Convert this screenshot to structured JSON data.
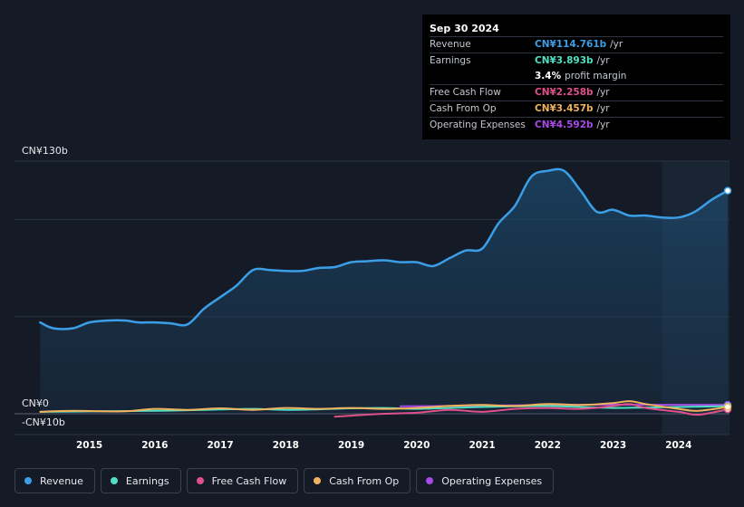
{
  "tooltip": {
    "date": "Sep 30 2024",
    "rows": [
      {
        "label": "Revenue",
        "value": "CN¥114.761b",
        "unit": "/yr",
        "color": "#3b9fe8"
      },
      {
        "label": "Earnings",
        "value": "CN¥3.893b",
        "unit": "/yr",
        "color": "#4fe0c4"
      },
      {
        "label": "",
        "value": "3.4%",
        "unit": "",
        "extra": "profit margin",
        "color": "#ffffff"
      },
      {
        "label": "Free Cash Flow",
        "value": "CN¥2.258b",
        "unit": "/yr",
        "color": "#e0508a"
      },
      {
        "label": "Cash From Op",
        "value": "CN¥3.457b",
        "unit": "/yr",
        "color": "#f0b25a"
      },
      {
        "label": "Operating Expenses",
        "value": "CN¥4.592b",
        "unit": "/yr",
        "color": "#a64be8"
      }
    ]
  },
  "legend": [
    {
      "label": "Revenue",
      "color": "#3b9fe8"
    },
    {
      "label": "Earnings",
      "color": "#4fe0c4"
    },
    {
      "label": "Free Cash Flow",
      "color": "#e0508a"
    },
    {
      "label": "Cash From Op",
      "color": "#f0b25a"
    },
    {
      "label": "Operating Expenses",
      "color": "#a64be8"
    }
  ],
  "chart_data": {
    "type": "line",
    "title": "",
    "xlabel": "",
    "ylabel": "",
    "ylim": [
      -10,
      130
    ],
    "xlim": [
      2014.3,
      2024.75
    ],
    "y_tick_labels": [
      {
        "value": 130,
        "label": "CN¥130b"
      },
      {
        "value": 0,
        "label": "CN¥0"
      },
      {
        "value": -10,
        "label": "-CN¥10b"
      }
    ],
    "x_ticks": [
      2015,
      2016,
      2017,
      2018,
      2019,
      2020,
      2021,
      2022,
      2023,
      2024
    ],
    "x_tick_labels": [
      "2015",
      "2016",
      "2017",
      "2018",
      "2019",
      "2020",
      "2021",
      "2022",
      "2023",
      "2024"
    ],
    "highlight_from": 2023.75,
    "series": [
      {
        "name": "Revenue",
        "color": "#3b9fe8",
        "fill": true,
        "points": [
          [
            2014.25,
            47
          ],
          [
            2014.45,
            44
          ],
          [
            2014.75,
            44
          ],
          [
            2015.0,
            47
          ],
          [
            2015.3,
            48
          ],
          [
            2015.55,
            48
          ],
          [
            2015.75,
            47
          ],
          [
            2016.0,
            47
          ],
          [
            2016.25,
            46.5
          ],
          [
            2016.5,
            46
          ],
          [
            2016.75,
            54
          ],
          [
            2017.0,
            60
          ],
          [
            2017.25,
            66
          ],
          [
            2017.5,
            74
          ],
          [
            2017.75,
            74
          ],
          [
            2018.0,
            73.5
          ],
          [
            2018.25,
            73.5
          ],
          [
            2018.5,
            75
          ],
          [
            2018.75,
            75.5
          ],
          [
            2019.0,
            78
          ],
          [
            2019.25,
            78.5
          ],
          [
            2019.5,
            79
          ],
          [
            2019.75,
            78
          ],
          [
            2020.0,
            78
          ],
          [
            2020.25,
            76
          ],
          [
            2020.5,
            80
          ],
          [
            2020.75,
            84
          ],
          [
            2021.0,
            85
          ],
          [
            2021.25,
            98
          ],
          [
            2021.5,
            107
          ],
          [
            2021.75,
            122
          ],
          [
            2022.0,
            125
          ],
          [
            2022.25,
            125
          ],
          [
            2022.5,
            115
          ],
          [
            2022.75,
            104
          ],
          [
            2023.0,
            105
          ],
          [
            2023.25,
            102
          ],
          [
            2023.5,
            102
          ],
          [
            2023.75,
            101
          ],
          [
            2024.0,
            101
          ],
          [
            2024.25,
            104
          ],
          [
            2024.5,
            110
          ],
          [
            2024.75,
            114.8
          ]
        ]
      },
      {
        "name": "Earnings",
        "color": "#4fe0c4",
        "fill": false,
        "points": [
          [
            2014.25,
            1.0
          ],
          [
            2015.0,
            1.2
          ],
          [
            2016.0,
            1.5
          ],
          [
            2016.5,
            1.8
          ],
          [
            2017.0,
            2.2
          ],
          [
            2017.5,
            2.5
          ],
          [
            2018.0,
            2.0
          ],
          [
            2018.5,
            2.3
          ],
          [
            2019.0,
            2.8
          ],
          [
            2019.5,
            3.0
          ],
          [
            2020.0,
            2.5
          ],
          [
            2020.5,
            3.0
          ],
          [
            2021.0,
            3.5
          ],
          [
            2021.5,
            3.8
          ],
          [
            2022.0,
            4.0
          ],
          [
            2022.5,
            3.5
          ],
          [
            2023.0,
            3.0
          ],
          [
            2023.5,
            3.2
          ],
          [
            2024.0,
            3.5
          ],
          [
            2024.75,
            3.9
          ]
        ]
      },
      {
        "name": "Free Cash Flow",
        "color": "#e0508a",
        "fill": false,
        "points": [
          [
            2018.75,
            -1.5
          ],
          [
            2019.0,
            -1.0
          ],
          [
            2019.5,
            0.0
          ],
          [
            2020.0,
            0.5
          ],
          [
            2020.5,
            2.0
          ],
          [
            2021.0,
            1.0
          ],
          [
            2021.5,
            2.5
          ],
          [
            2022.0,
            3.0
          ],
          [
            2022.5,
            2.5
          ],
          [
            2023.0,
            4.0
          ],
          [
            2023.25,
            5.0
          ],
          [
            2023.5,
            3.0
          ],
          [
            2024.0,
            1.0
          ],
          [
            2024.3,
            -0.5
          ],
          [
            2024.75,
            2.3
          ]
        ]
      },
      {
        "name": "Cash From Op",
        "color": "#f0b25a",
        "fill": false,
        "points": [
          [
            2014.25,
            1.0
          ],
          [
            2014.75,
            1.5
          ],
          [
            2015.5,
            1.2
          ],
          [
            2016.0,
            2.5
          ],
          [
            2016.5,
            2.0
          ],
          [
            2017.0,
            2.8
          ],
          [
            2017.5,
            2.0
          ],
          [
            2018.0,
            3.0
          ],
          [
            2018.5,
            2.5
          ],
          [
            2019.0,
            3.0
          ],
          [
            2019.5,
            2.5
          ],
          [
            2020.0,
            3.0
          ],
          [
            2020.5,
            4.0
          ],
          [
            2021.0,
            4.5
          ],
          [
            2021.5,
            4.0
          ],
          [
            2022.0,
            5.0
          ],
          [
            2022.5,
            4.5
          ],
          [
            2023.0,
            5.5
          ],
          [
            2023.25,
            6.5
          ],
          [
            2023.5,
            5.0
          ],
          [
            2024.0,
            2.5
          ],
          [
            2024.3,
            1.5
          ],
          [
            2024.75,
            3.5
          ]
        ]
      },
      {
        "name": "Operating Expenses",
        "color": "#a64be8",
        "fill": false,
        "points": [
          [
            2019.75,
            3.8
          ],
          [
            2020.5,
            4.0
          ],
          [
            2021.0,
            4.2
          ],
          [
            2021.5,
            4.3
          ],
          [
            2022.0,
            4.5
          ],
          [
            2022.5,
            4.6
          ],
          [
            2023.0,
            4.7
          ],
          [
            2023.5,
            4.6
          ],
          [
            2024.0,
            4.6
          ],
          [
            2024.75,
            4.6
          ]
        ]
      }
    ]
  }
}
